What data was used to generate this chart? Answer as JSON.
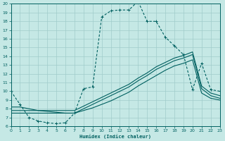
{
  "xlabel": "Humidex (Indice chaleur)",
  "bg_color": "#c5e8e5",
  "grid_color": "#a0ccca",
  "line_color": "#006060",
  "xlim": [
    0,
    23
  ],
  "ylim": [
    6,
    20
  ],
  "xticks": [
    0,
    1,
    2,
    3,
    4,
    5,
    6,
    7,
    8,
    9,
    10,
    11,
    12,
    13,
    14,
    15,
    16,
    17,
    18,
    19,
    20,
    21,
    22,
    23
  ],
  "yticks": [
    6,
    7,
    8,
    9,
    10,
    11,
    12,
    13,
    14,
    15,
    16,
    17,
    18,
    19,
    20
  ],
  "main_x": [
    0,
    1,
    2,
    3,
    4,
    5,
    6,
    7,
    8,
    9,
    10,
    11,
    12,
    13,
    14,
    15,
    16,
    17,
    18,
    19,
    20,
    21,
    22,
    23
  ],
  "main_y": [
    10,
    8.5,
    7.0,
    6.6,
    6.4,
    6.3,
    6.4,
    7.5,
    10.3,
    10.5,
    18.5,
    19.2,
    19.3,
    19.3,
    20.3,
    18.0,
    18.0,
    16.2,
    15.2,
    14.2,
    10.2,
    13.2,
    10.2,
    10.0
  ],
  "diag1_x": [
    0,
    1,
    2,
    3,
    4,
    5,
    6,
    7,
    8,
    9,
    10,
    11,
    12,
    13,
    14,
    15,
    16,
    17,
    18,
    19,
    20,
    21,
    22,
    23
  ],
  "diag1_y": [
    7.5,
    7.5,
    7.5,
    7.5,
    7.5,
    7.5,
    7.5,
    7.5,
    8.0,
    8.5,
    9.0,
    9.5,
    10.0,
    10.5,
    11.2,
    11.8,
    12.5,
    13.0,
    13.5,
    13.8,
    14.2,
    10.3,
    9.5,
    9.2
  ],
  "diag2_x": [
    0,
    1,
    2,
    3,
    4,
    5,
    6,
    7,
    8,
    9,
    10,
    11,
    12,
    13,
    14,
    15,
    16,
    17,
    18,
    19,
    20,
    21,
    22,
    23
  ],
  "diag2_y": [
    7.8,
    7.8,
    7.8,
    7.8,
    7.8,
    7.8,
    7.8,
    7.8,
    8.3,
    8.8,
    9.3,
    9.8,
    10.3,
    10.8,
    11.5,
    12.1,
    12.8,
    13.3,
    13.8,
    14.1,
    14.5,
    10.6,
    9.8,
    9.5
  ],
  "diag3_x": [
    0,
    1,
    2,
    3,
    4,
    5,
    6,
    7,
    8,
    9,
    10,
    11,
    12,
    13,
    14,
    15,
    16,
    17,
    18,
    19,
    20,
    21,
    22,
    23
  ],
  "diag3_y": [
    8.2,
    8.2,
    8.0,
    7.8,
    7.7,
    7.6,
    7.5,
    7.5,
    7.8,
    8.1,
    8.5,
    8.9,
    9.4,
    9.9,
    10.6,
    11.2,
    11.8,
    12.4,
    12.9,
    13.2,
    13.6,
    9.8,
    9.2,
    9.0
  ]
}
